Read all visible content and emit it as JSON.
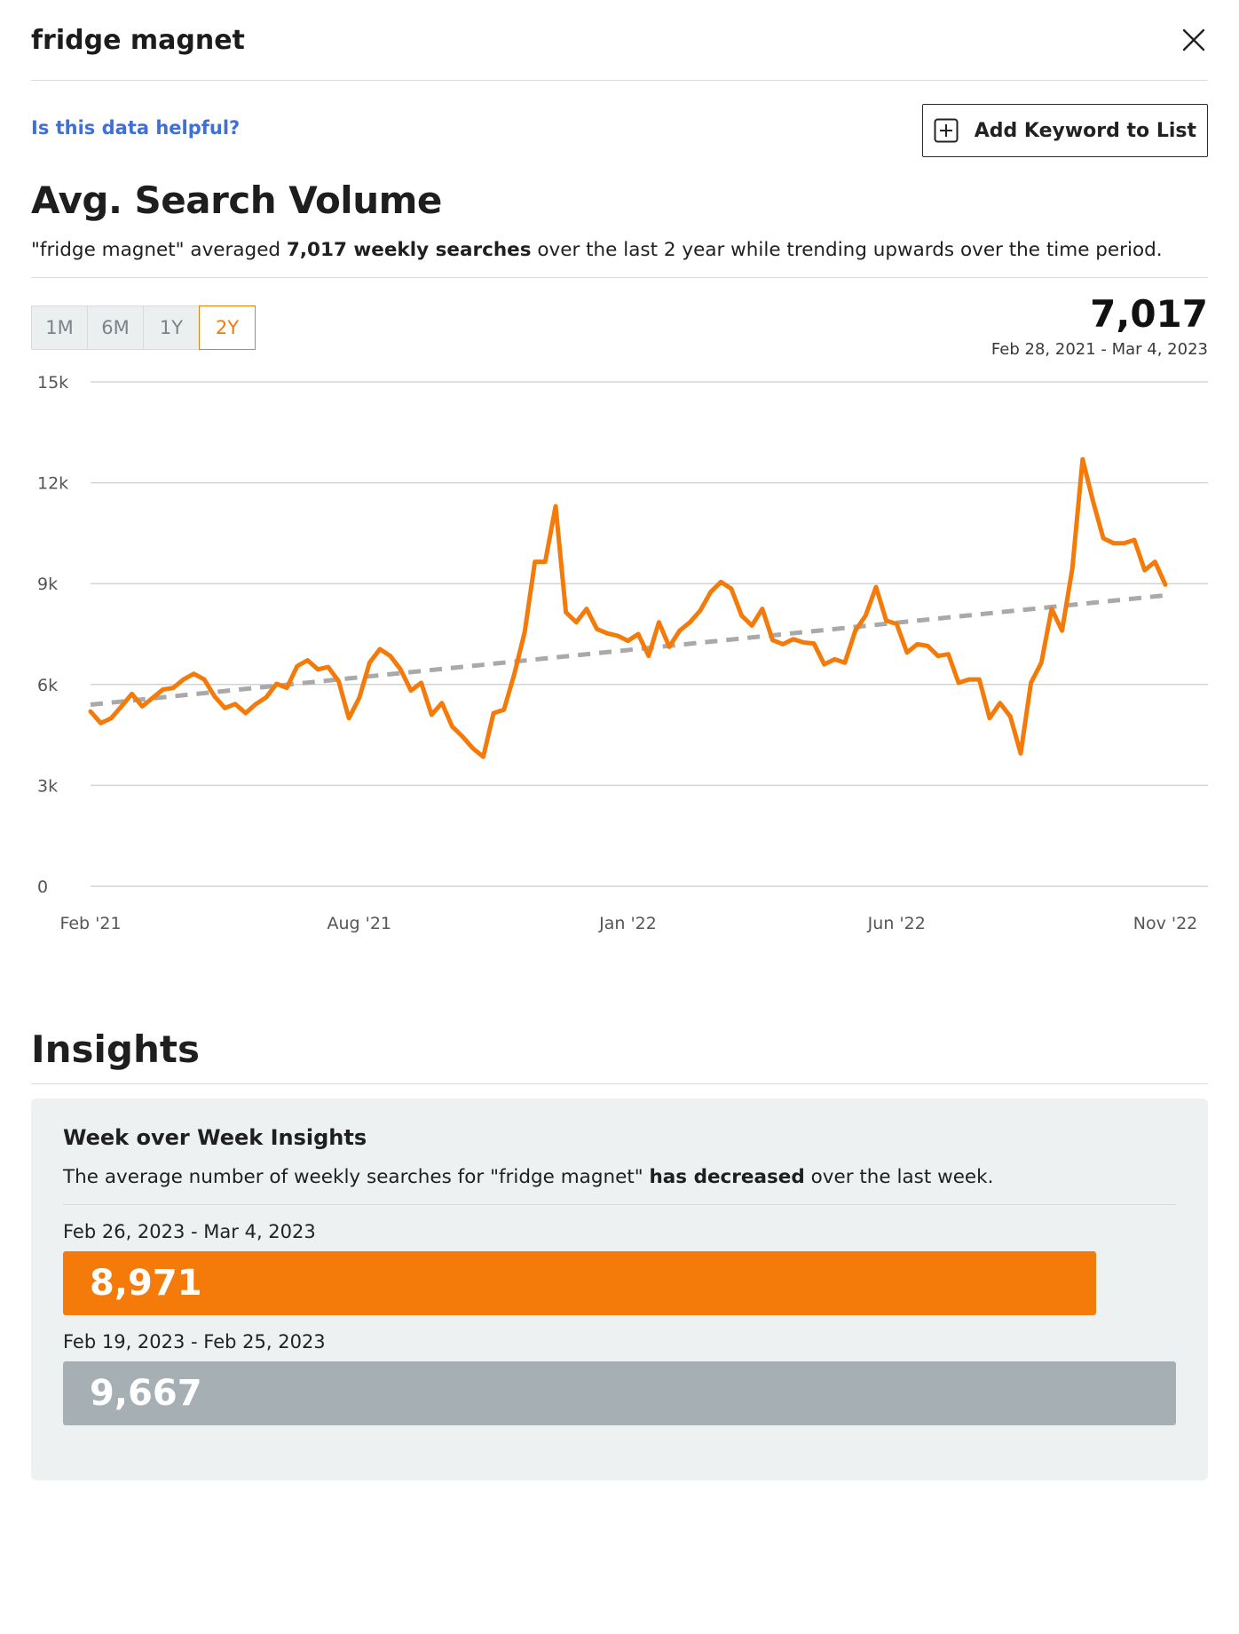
{
  "header": {
    "keyword": "fridge magnet"
  },
  "actions": {
    "helpful_link": "Is this data helpful?",
    "add_keyword": "Add Keyword to List"
  },
  "volume": {
    "title": "Avg. Search Volume",
    "summary_pre": "\"fridge magnet\" averaged ",
    "summary_bold": "7,017 weekly searches",
    "summary_post": " over the last 2 year while trending upwards over the time period.",
    "ranges": [
      "1M",
      "6M",
      "1Y",
      "2Y"
    ],
    "active_range": "2Y",
    "total": "7,017",
    "date_range": "Feb 28, 2021 - Mar 4, 2023"
  },
  "colors": {
    "accent": "#f47a0a",
    "trend": "#a9a9a9",
    "grid": "#d4d4d4",
    "link": "#3f6fd9",
    "previous_bar": "#a6afb4"
  },
  "chart_data": {
    "type": "line",
    "xlabel": "",
    "ylabel": "",
    "ylim": [
      0,
      15000
    ],
    "yticks": [
      0,
      3000,
      6000,
      9000,
      12000,
      15000
    ],
    "ytick_labels": [
      "0",
      "3k",
      "6k",
      "9k",
      "12k",
      "15k"
    ],
    "xtick_labels": [
      "Feb '21",
      "Aug '21",
      "Jan '22",
      "Jun '22",
      "Nov '22"
    ],
    "xtick_positions": [
      0,
      26,
      52,
      78,
      104
    ],
    "grid": true,
    "series": [
      {
        "values": [
          5200,
          4850,
          5000,
          5350,
          5720,
          5350,
          5600,
          5850,
          5900,
          6150,
          6320,
          6150,
          5650,
          5300,
          5420,
          5150,
          5420,
          5620,
          6020,
          5900,
          6550,
          6720,
          6450,
          6520,
          6100,
          5000,
          5600,
          6650,
          7050,
          6850,
          6450,
          5820,
          6050,
          5100,
          5450,
          4750,
          4450,
          4100,
          3850,
          5150,
          5250,
          6300,
          7550,
          9650,
          9650,
          11300,
          8150,
          7850,
          8250,
          7650,
          7520,
          7450,
          7300,
          7500,
          6850,
          7850,
          7120,
          7600,
          7850,
          8200,
          8750,
          9050,
          8850,
          8050,
          7750,
          8250,
          7320,
          7200,
          7350,
          7250,
          7220,
          6600,
          6750,
          6650,
          7600,
          8050,
          8900,
          7900,
          7800,
          6950,
          7200,
          7150,
          6850,
          6900,
          6050,
          6150,
          6150,
          5000,
          5450,
          5050,
          3950,
          6050,
          6650,
          8250,
          7600,
          9450,
          12700,
          11450,
          10350,
          10200,
          10200,
          10300,
          9400,
          9650,
          8971
        ]
      },
      {
        "type": "trend",
        "values": [
          5400,
          8650
        ]
      }
    ]
  },
  "insights": {
    "title": "Insights",
    "card_title": "Week over Week Insights",
    "text_pre": "The average number of weekly searches for \"fridge magnet\" ",
    "text_bold": "has decreased",
    "text_post": " over the last week.",
    "current_label": "Feb 26, 2023 - Mar 4, 2023",
    "current_value": "8,971",
    "current_num": 8971,
    "previous_label": "Feb 19, 2023 - Feb 25, 2023",
    "previous_value": "9,667",
    "previous_num": 9667
  }
}
